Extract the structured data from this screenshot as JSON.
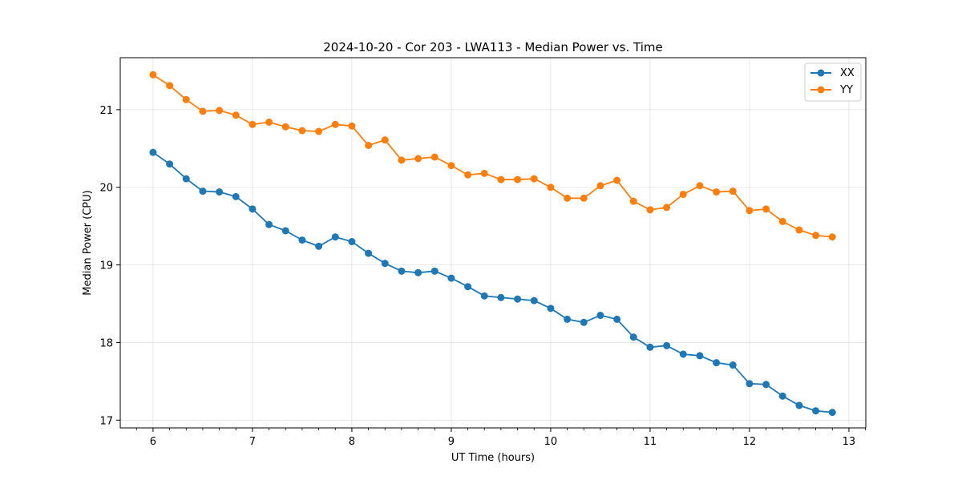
{
  "chart_data": {
    "type": "line",
    "title": "2024-10-20 - Cor 203 - LWA113 - Median Power vs. Time",
    "xlabel": "UT Time (hours)",
    "ylabel": "Median Power (CPU)",
    "xlim": [
      5.67,
      13.17
    ],
    "ylim": [
      16.9,
      21.67
    ],
    "x_ticks": [
      "6",
      "7",
      "8",
      "9",
      "10",
      "11",
      "12",
      "13"
    ],
    "y_ticks": [
      "17",
      "18",
      "19",
      "20",
      "21"
    ],
    "grid": true,
    "legend_position": "top-right",
    "x": [
      6.0,
      6.1667,
      6.3333,
      6.5,
      6.6667,
      6.8333,
      7.0,
      7.1667,
      7.3333,
      7.5,
      7.6667,
      7.8333,
      8.0,
      8.1667,
      8.3333,
      8.5,
      8.6667,
      8.8333,
      9.0,
      9.1667,
      9.3333,
      9.5,
      9.6667,
      9.8333,
      10.0,
      10.1667,
      10.3333,
      10.5,
      10.6667,
      10.8333,
      11.0,
      11.1667,
      11.3333,
      11.5,
      11.6667,
      11.8333,
      12.0,
      12.1667,
      12.3333,
      12.5,
      12.6667,
      12.8333
    ],
    "series": [
      {
        "name": "XX",
        "color": "#1f77b4",
        "values": [
          20.45,
          20.3,
          20.11,
          19.95,
          19.94,
          19.88,
          19.72,
          19.52,
          19.44,
          19.32,
          19.24,
          19.36,
          19.3,
          19.15,
          19.02,
          18.92,
          18.9,
          18.92,
          18.83,
          18.72,
          18.6,
          18.58,
          18.56,
          18.54,
          18.44,
          18.3,
          18.26,
          18.35,
          18.3,
          18.07,
          17.94,
          17.96,
          17.85,
          17.83,
          17.74,
          17.71,
          17.47,
          17.46,
          17.31,
          17.19,
          17.12,
          17.1
        ]
      },
      {
        "name": "YY",
        "color": "#ff7f0e",
        "values": [
          21.45,
          21.31,
          21.13,
          20.98,
          20.99,
          20.93,
          20.81,
          20.84,
          20.78,
          20.73,
          20.72,
          20.81,
          20.79,
          20.54,
          20.61,
          20.35,
          20.37,
          20.39,
          20.28,
          20.16,
          20.18,
          20.1,
          20.1,
          20.11,
          20.0,
          19.86,
          19.86,
          20.02,
          20.09,
          19.82,
          19.71,
          19.74,
          19.91,
          20.02,
          19.94,
          19.95,
          19.7,
          19.72,
          19.56,
          19.45,
          19.38,
          19.36
        ]
      }
    ]
  }
}
